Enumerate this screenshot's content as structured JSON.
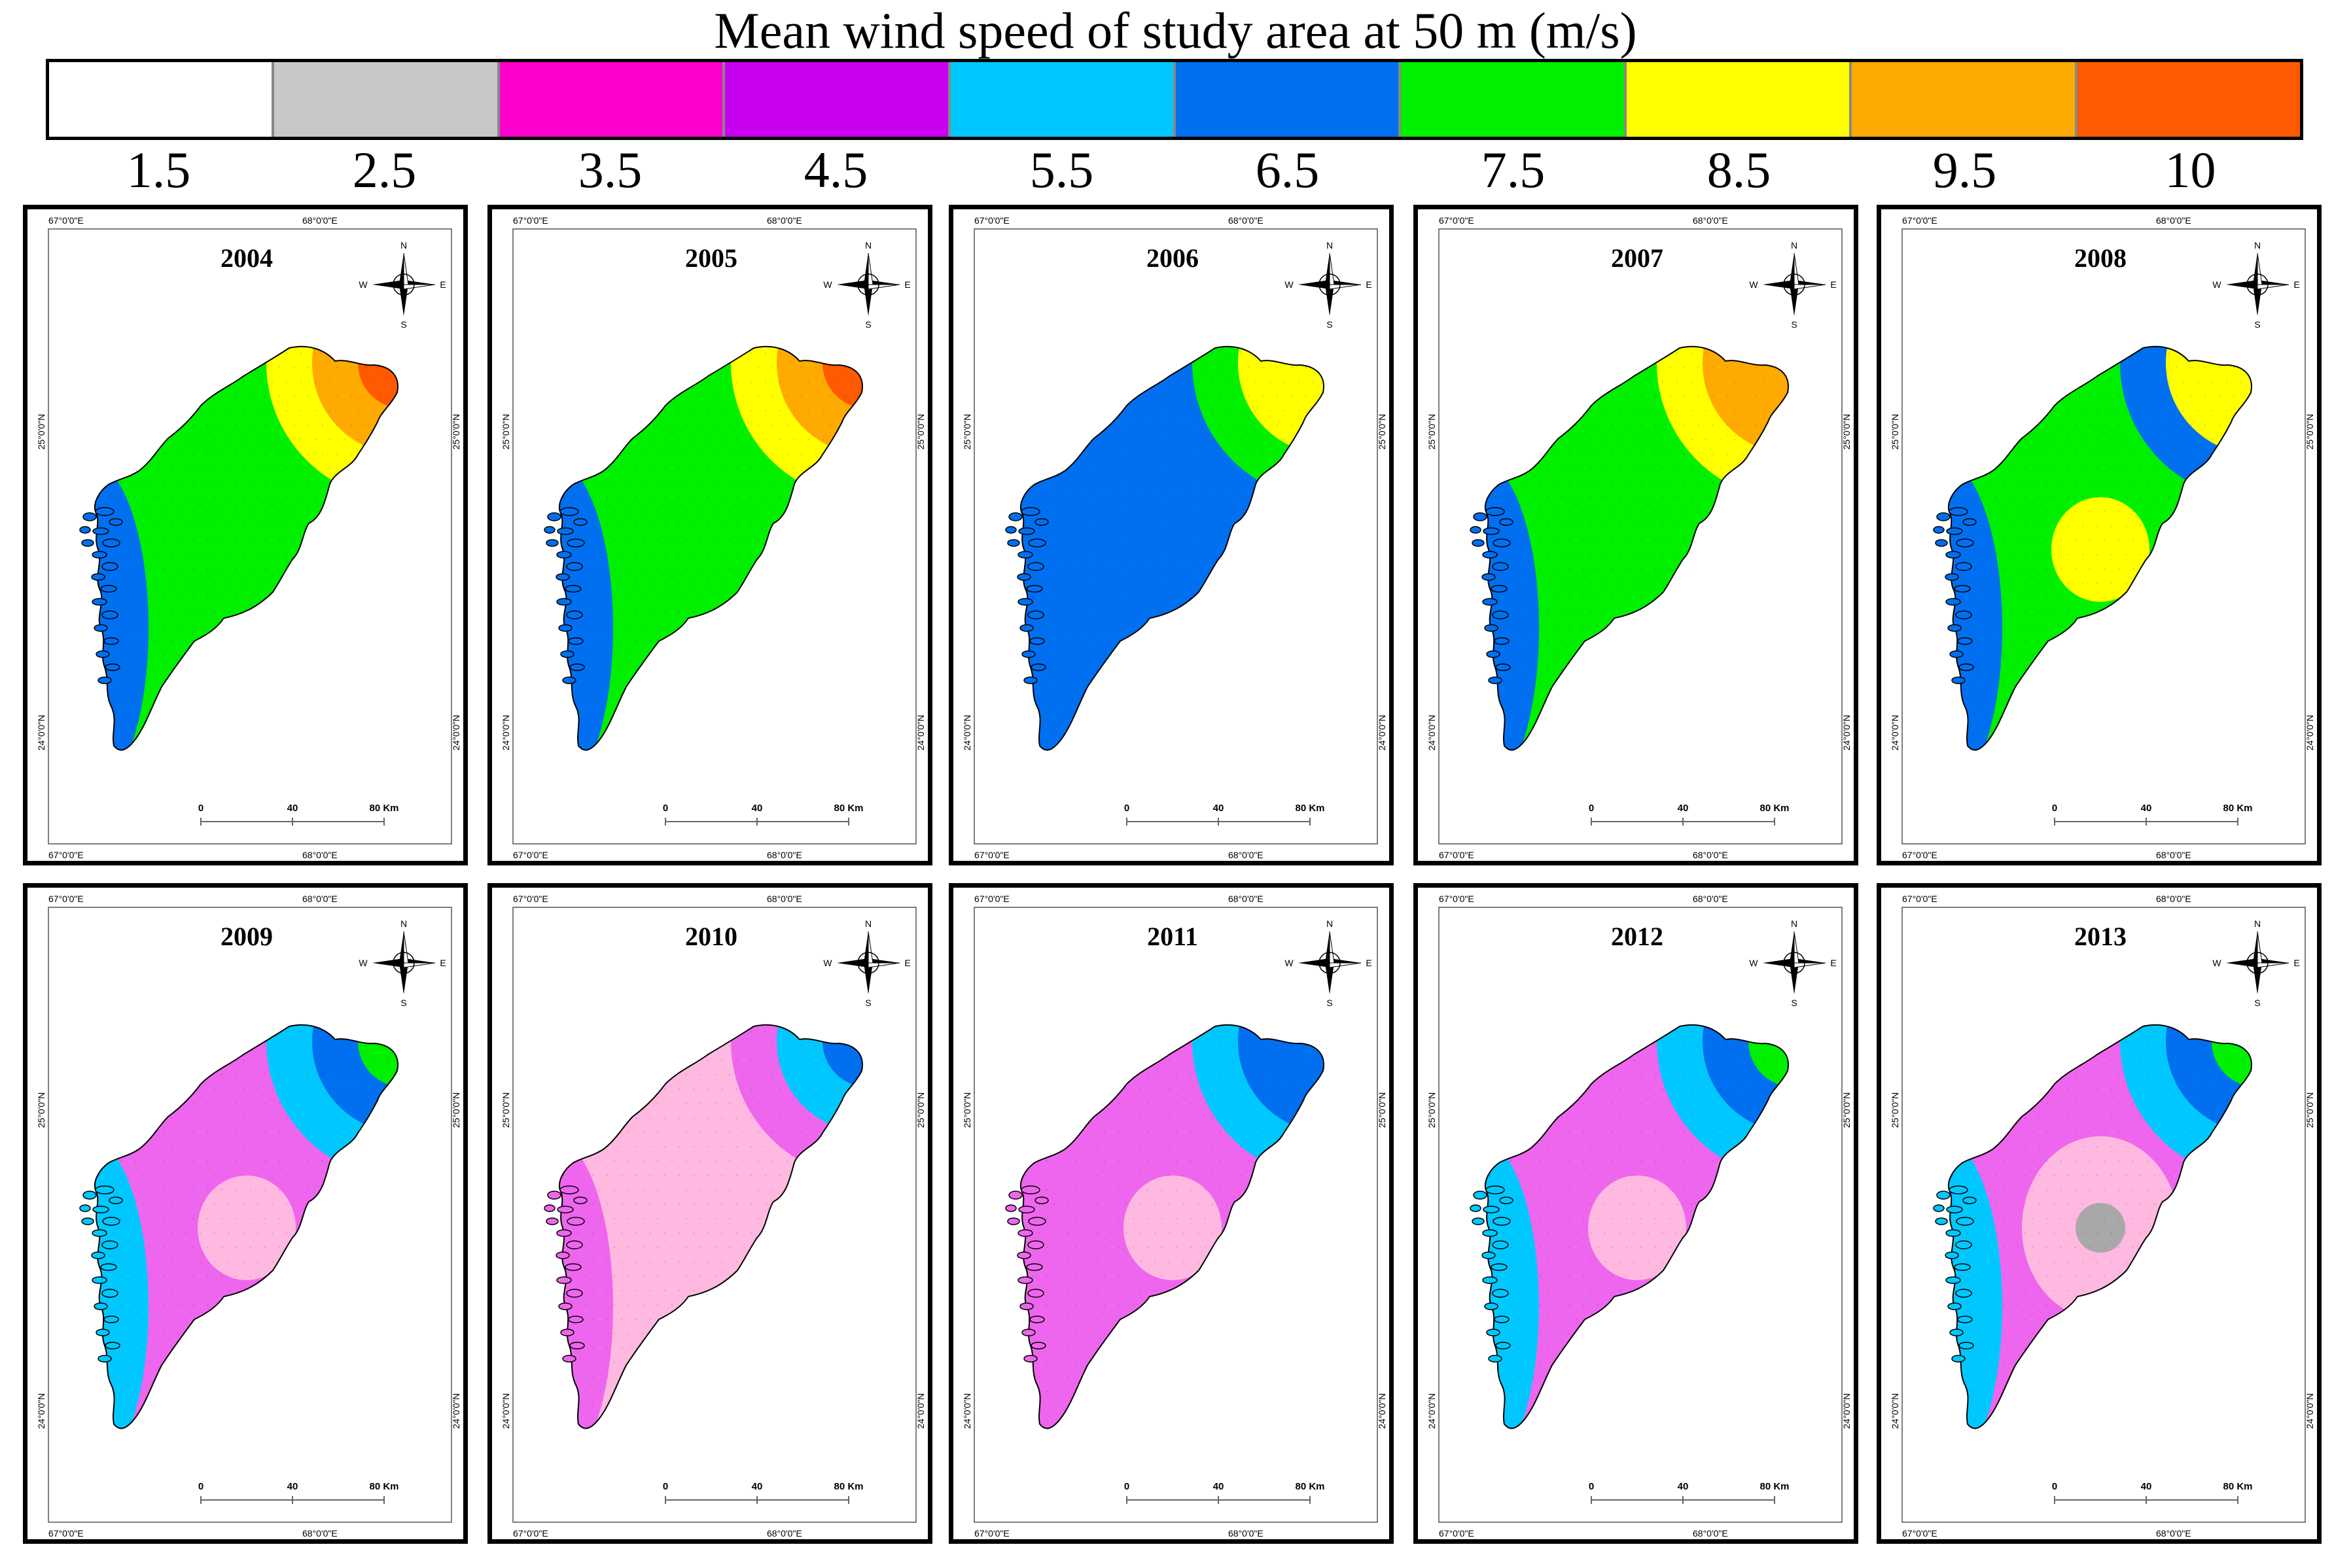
{
  "legend": {
    "title": "Mean wind speed of study area at 50 m (m/s)",
    "classes": [
      {
        "label": "1.5",
        "color": "#FFFFFF"
      },
      {
        "label": "2.5",
        "color": "#C8C8C8"
      },
      {
        "label": "3.5",
        "color": "#FF00CC"
      },
      {
        "label": "4.5",
        "color": "#C800F0"
      },
      {
        "label": "5.5",
        "color": "#00C8FF"
      },
      {
        "label": "6.5",
        "color": "#0070F0"
      },
      {
        "label": "7.5",
        "color": "#00F000"
      },
      {
        "label": "8.5",
        "color": "#FFFF00"
      },
      {
        "label": "9.5",
        "color": "#FFAA00"
      },
      {
        "label": "10",
        "color": "#FF5A00"
      }
    ]
  },
  "map_labels": {
    "lon_west": "67°0'0\"E",
    "lon_east": "68°0'0\"E",
    "lat_north": "25°0'0\"N",
    "lat_south": "24°0'0\"N",
    "compass": {
      "n": "N",
      "s": "S",
      "e": "E",
      "w": "W"
    },
    "scale": {
      "zero": "0",
      "mid": "40",
      "end": "80 Km"
    }
  },
  "panels": [
    {
      "year": "2004",
      "base": "#00F000",
      "coastal": "#0070F0",
      "ne_bands": [
        "#FFFF00",
        "#FFAA00",
        "#FF5A00"
      ],
      "center_blob": null
    },
    {
      "year": "2005",
      "base": "#00F000",
      "coastal": "#0070F0",
      "ne_bands": [
        "#FFFF00",
        "#FFAA00",
        "#FF5A00"
      ],
      "center_blob": null
    },
    {
      "year": "2006",
      "base": "#0070F0",
      "coastal": "#0070F0",
      "ne_bands": [
        "#00F000",
        "#FFFF00"
      ],
      "center_blob": null
    },
    {
      "year": "2007",
      "base": "#00F000",
      "coastal": "#0070F0",
      "ne_bands": [
        "#FFFF00",
        "#FFAA00"
      ],
      "center_blob": null
    },
    {
      "year": "2008",
      "base": "#00F000",
      "coastal": "#0070F0",
      "ne_bands": [
        "#0070F0",
        "#FFFF00"
      ],
      "center_blob": "#FFFF00"
    },
    {
      "year": "2009",
      "base": "#EE66EE",
      "coastal": "#00C8FF",
      "ne_bands": [
        "#00C8FF",
        "#0070F0",
        "#00F000"
      ],
      "center_blob": "#FFB8E0"
    },
    {
      "year": "2010",
      "base": "#FFB8E0",
      "coastal": "#EE66EE",
      "ne_bands": [
        "#EE66EE",
        "#00C8FF",
        "#0070F0"
      ],
      "center_blob": "#FFB8E0"
    },
    {
      "year": "2011",
      "base": "#EE66EE",
      "coastal": "#EE66EE",
      "ne_bands": [
        "#00C8FF",
        "#0070F0"
      ],
      "center_blob": "#FFB8E0"
    },
    {
      "year": "2012",
      "base": "#EE66EE",
      "coastal": "#00C8FF",
      "ne_bands": [
        "#00C8FF",
        "#0070F0",
        "#00F000"
      ],
      "center_blob": "#FFB8E0"
    },
    {
      "year": "2013",
      "base": "#EE66EE",
      "coastal": "#00C8FF",
      "ne_bands": [
        "#00C8FF",
        "#0070F0",
        "#00F000"
      ],
      "center_blob": "#FFB8E0",
      "inner_blob": "#A8A8A8"
    }
  ]
}
